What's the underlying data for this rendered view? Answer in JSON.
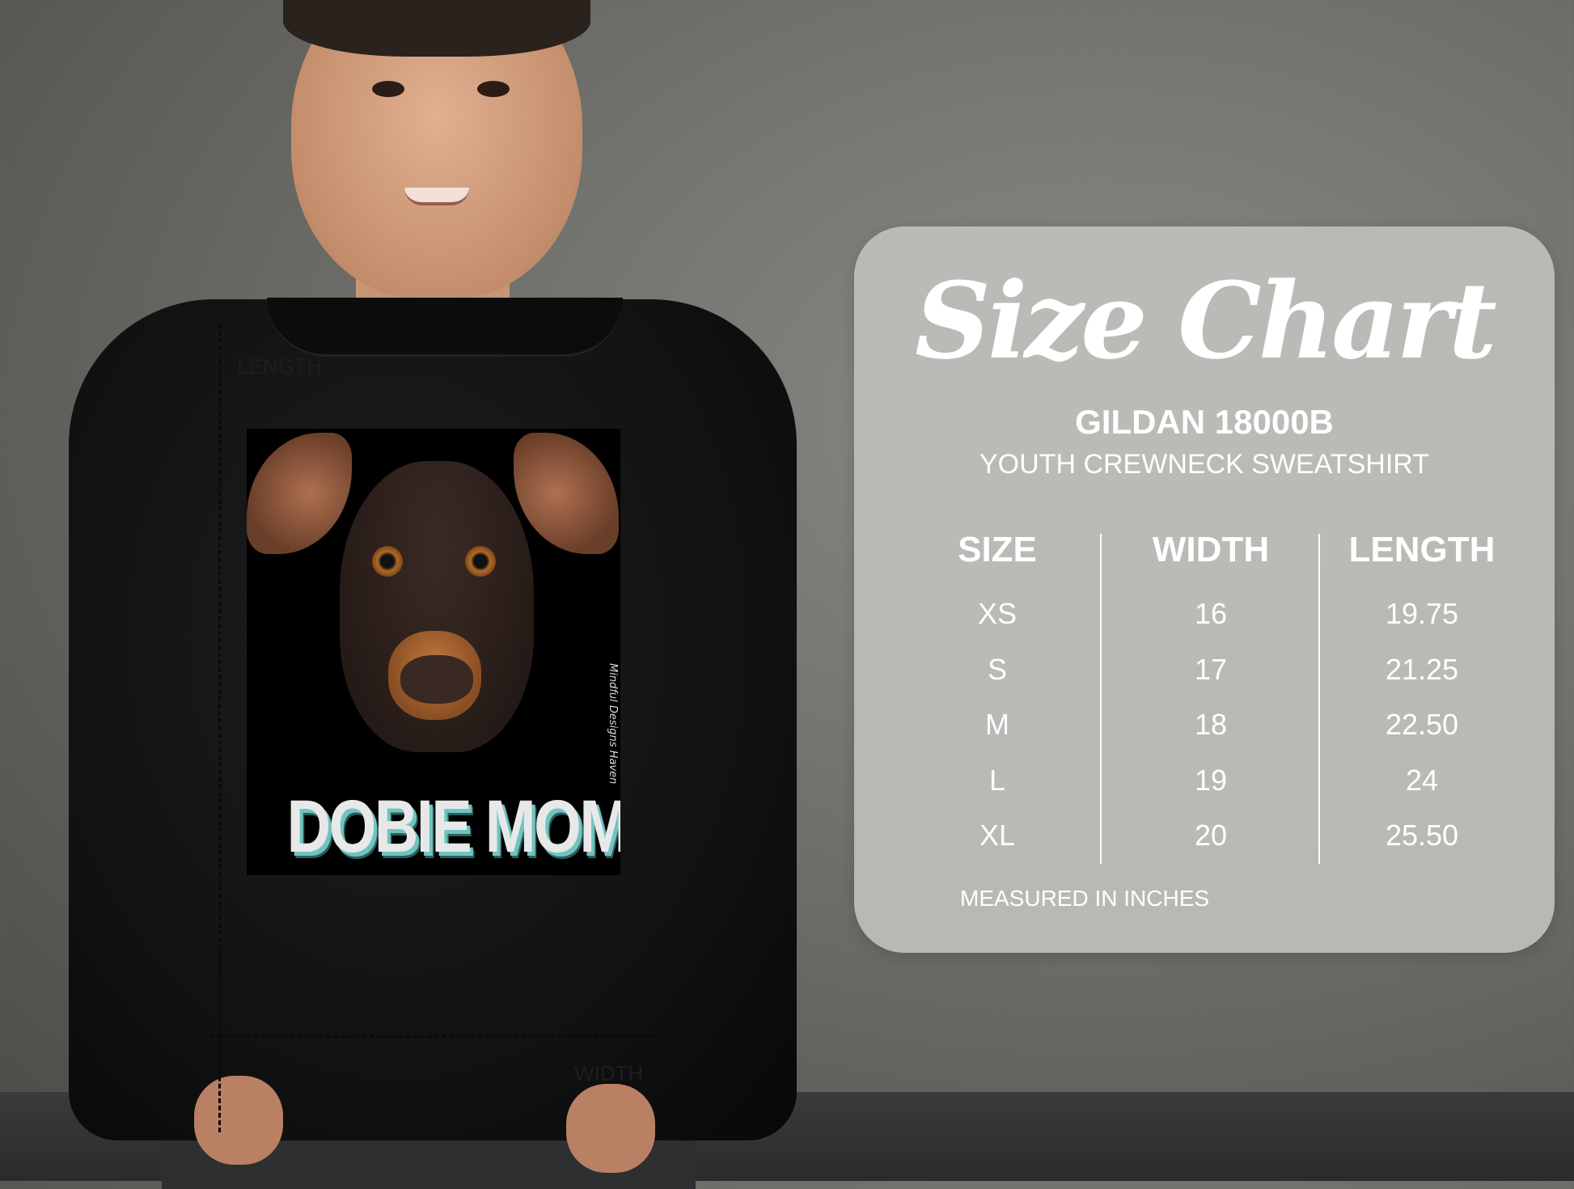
{
  "photo": {
    "print_slogan": "DOBIE MOM",
    "print_watermark": "Mindful Designs Haven",
    "measure_labels": {
      "length": "LENGTH",
      "width": "WIDTH"
    }
  },
  "size_chart": {
    "title": "Size Chart",
    "brand": "GILDAN 18000B",
    "product": "YOUTH CREWNECK SWEATSHIRT",
    "columns": [
      "SIZE",
      "WIDTH",
      "LENGTH"
    ],
    "rows": [
      [
        "XS",
        "16",
        "19.75"
      ],
      [
        "S",
        "17",
        "21.25"
      ],
      [
        "M",
        "18",
        "22.50"
      ],
      [
        "L",
        "19",
        "24"
      ],
      [
        "XL",
        "20",
        "25.50"
      ]
    ],
    "note": "MEASURED IN INCHES"
  },
  "colors": {
    "panel": "#bebeba",
    "text": "#ffffff",
    "slogan_shadow": "#6fc4c0"
  }
}
